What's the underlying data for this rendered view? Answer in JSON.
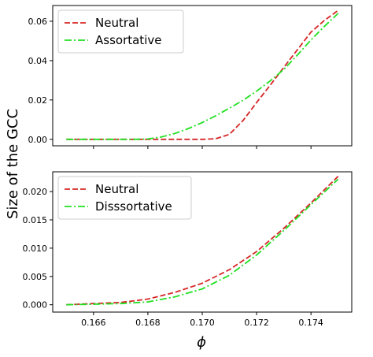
{
  "chart_data": [
    {
      "type": "line",
      "title": "",
      "xlabel": "ϕ",
      "ylabel": "Size of the GCC",
      "xlim": [
        0.1645,
        0.1755
      ],
      "ylim": [
        -0.0033,
        0.068
      ],
      "xticks": [
        0.166,
        0.168,
        0.17,
        0.172,
        0.174
      ],
      "xtick_labels": [
        "",
        "",
        "",
        "",
        ""
      ],
      "yticks": [
        0.0,
        0.02,
        0.04,
        0.06
      ],
      "ytick_labels": [
        "0.00",
        "0.02",
        "0.04",
        "0.06"
      ],
      "grid": false,
      "legend_position": "top-left",
      "x": [
        0.165,
        0.1675,
        0.168,
        0.1685,
        0.169,
        0.1695,
        0.17,
        0.1705,
        0.171,
        0.1715,
        0.172,
        0.1725,
        0.173,
        0.1735,
        0.174,
        0.1745,
        0.175
      ],
      "series": [
        {
          "name": "Neutral",
          "color": "#d62728",
          "dash": "dashed",
          "values": [
            0.0,
            0.0,
            0.0,
            0.0,
            0.0,
            0.0,
            0.0,
            0.0003,
            0.0025,
            0.0095,
            0.0187,
            0.0275,
            0.0365,
            0.0455,
            0.0545,
            0.0605,
            0.0655
          ]
        },
        {
          "name": "Assortative",
          "color": "#22e022",
          "dash": "dashdot",
          "values": [
            0.0,
            0.0,
            0.0002,
            0.0012,
            0.003,
            0.0055,
            0.0085,
            0.012,
            0.0158,
            0.0198,
            0.0245,
            0.0297,
            0.0355,
            0.0428,
            0.0505,
            0.0575,
            0.064
          ]
        }
      ]
    },
    {
      "type": "line",
      "title": "",
      "xlabel": "ϕ",
      "ylabel": "Size of the GCC",
      "xlim": [
        0.1645,
        0.1755
      ],
      "ylim": [
        -0.0013,
        0.0235
      ],
      "xticks": [
        0.166,
        0.168,
        0.17,
        0.172,
        0.174
      ],
      "xtick_labels": [
        "0.166",
        "0.168",
        "0.170",
        "0.172",
        "0.174"
      ],
      "yticks": [
        0.0,
        0.005,
        0.01,
        0.015,
        0.02
      ],
      "ytick_labels": [
        "0.000",
        "0.005",
        "0.010",
        "0.015",
        "0.020"
      ],
      "grid": false,
      "legend_position": "top-left",
      "x": [
        0.165,
        0.166,
        0.167,
        0.168,
        0.169,
        0.17,
        0.171,
        0.172,
        0.173,
        0.174,
        0.175
      ],
      "series": [
        {
          "name": "Neutral",
          "color": "#d62728",
          "dash": "dashed",
          "values": [
            0.0,
            0.0002,
            0.0004,
            0.001,
            0.0022,
            0.0038,
            0.0062,
            0.0094,
            0.0135,
            0.018,
            0.0227
          ]
        },
        {
          "name": "Disssortative",
          "color": "#22e022",
          "dash": "dashdot",
          "values": [
            0.0,
            0.0001,
            0.0002,
            0.0005,
            0.0014,
            0.0028,
            0.0052,
            0.0088,
            0.0131,
            0.0177,
            0.0222
          ]
        }
      ]
    }
  ]
}
